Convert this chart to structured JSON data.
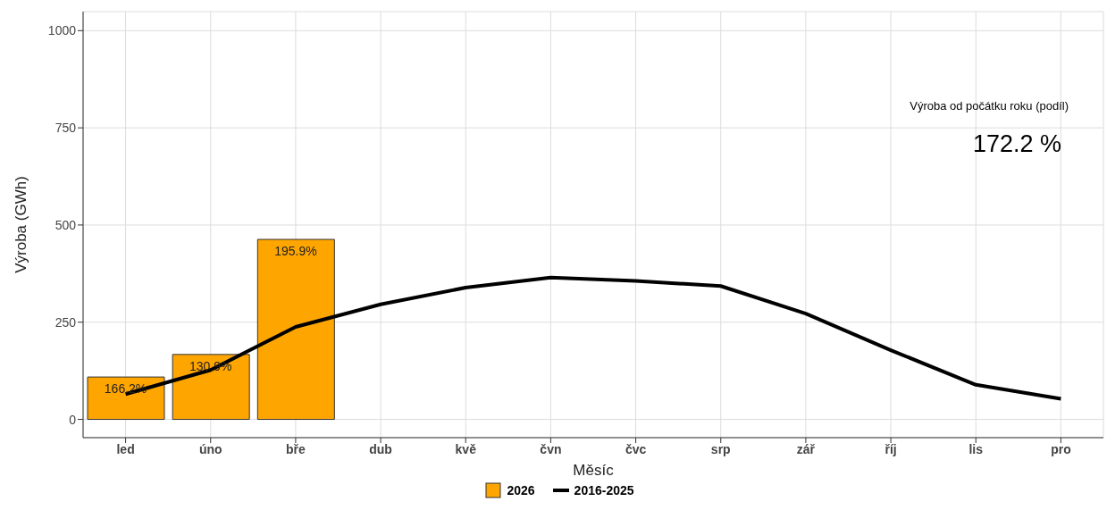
{
  "chart_data": {
    "type": "bar",
    "xlabel": "Měsíc",
    "ylabel": "Výroba (GWh)",
    "categories": [
      "led",
      "úno",
      "bře",
      "dub",
      "kvě",
      "čvn",
      "čvc",
      "srp",
      "zář",
      "říj",
      "lis",
      "pro"
    ],
    "series": [
      {
        "name": "2026",
        "color": "#ffa500",
        "values": [
          109,
          167,
          463,
          null,
          null,
          null,
          null,
          null,
          null,
          null,
          null,
          null
        ]
      },
      {
        "name": "2016-2025",
        "type": "line",
        "color": "#000000",
        "values": [
          65,
          127,
          238,
          296,
          339,
          365,
          356,
          343,
          272,
          178,
          89,
          53
        ]
      }
    ],
    "ylim": [
      -47,
      1049
    ],
    "yticks": [
      0,
      250,
      500,
      750,
      1000
    ],
    "grid": true,
    "legend": "bottom",
    "marker": "none",
    "line_style": "solid",
    "annotations": [
      "Výroba od počátku roku (podíl)",
      "172.2 %",
      {
        "text": "166.2%",
        "x": "led",
        "y": 109
      },
      {
        "text": "130.9%",
        "x": "úno",
        "y": 167
      },
      {
        "text": "195.9%",
        "x": "bře",
        "y": 463
      }
    ]
  }
}
